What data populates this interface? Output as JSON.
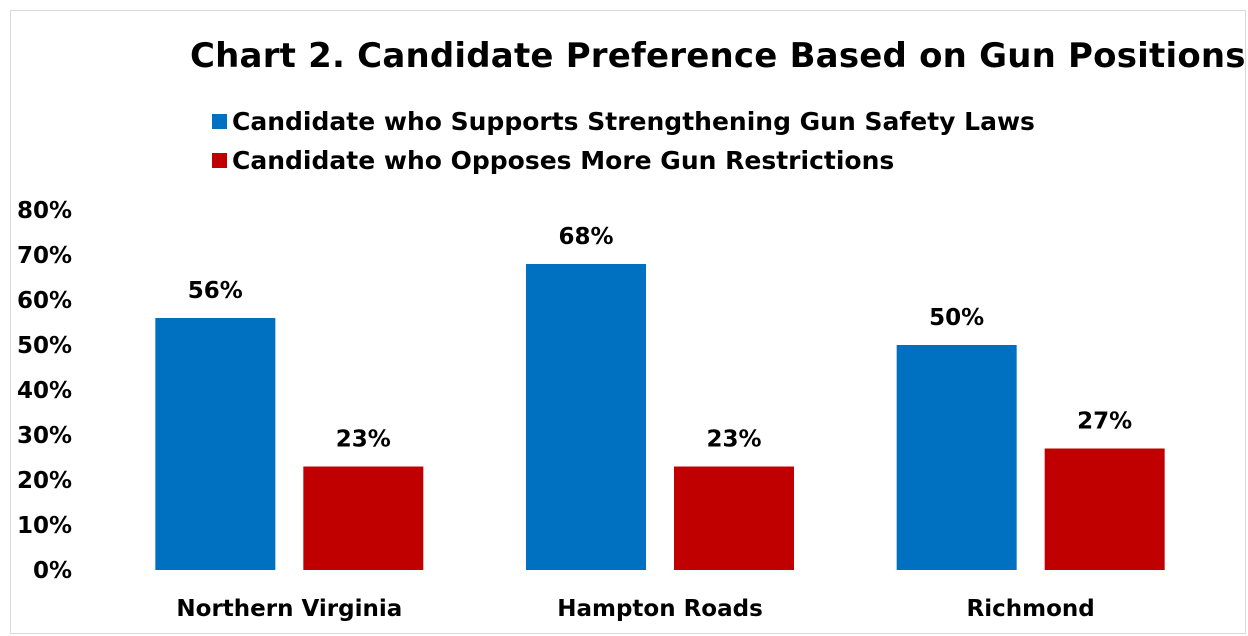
{
  "chart_data": {
    "type": "bar",
    "title": "Chart 2. Candidate Preference Based on Gun Positions",
    "xlabel": "",
    "ylabel": "",
    "ylim": [
      0,
      0.8
    ],
    "y_tick_labels": [
      "0%",
      "10%",
      "20%",
      "30%",
      "40%",
      "50%",
      "60%",
      "70%",
      "80%"
    ],
    "grid": false,
    "legend_position": "top",
    "categories": [
      "Northern Virginia",
      "Hampton Roads",
      "Richmond"
    ],
    "series": [
      {
        "name": "Candidate who Supports Strengthening Gun Safety Laws",
        "color": "#0070c0",
        "values": [
          0.56,
          0.68,
          0.5
        ],
        "labels": [
          "56%",
          "68%",
          "50%"
        ]
      },
      {
        "name": "Candidate who Opposes More Gun Restrictions",
        "color": "#c00000",
        "values": [
          0.23,
          0.23,
          0.27
        ],
        "labels": [
          "23%",
          "23%",
          "27%"
        ]
      }
    ]
  }
}
